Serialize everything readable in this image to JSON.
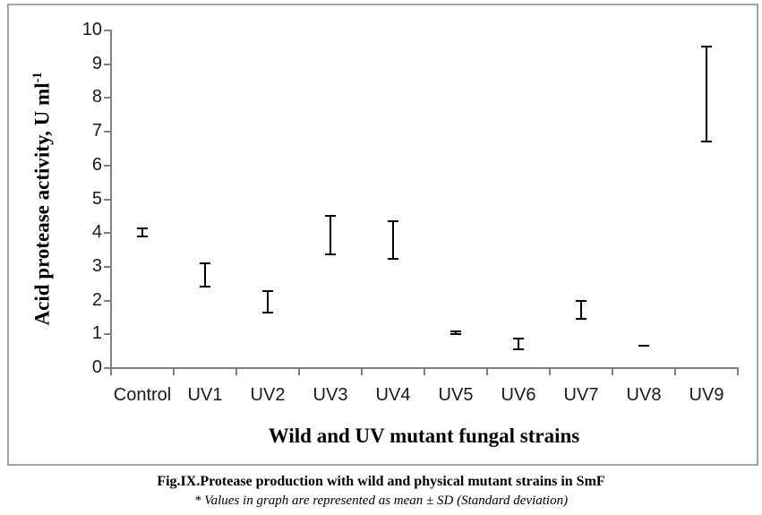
{
  "figure": {
    "caption_title": "Fig.IX.Protease production with wild and physical mutant strains in SmF",
    "caption_note": "* Values in graph are represented as mean ± SD (Standard deviation)"
  },
  "chart_data": {
    "type": "scatter",
    "subtype": "error-bars-only (mean ± SD, no markers)",
    "title": "",
    "xlabel": "Wild and UV mutant fungal strains",
    "ylabel": "Acid protease activity, U ml⁻¹",
    "ylabel_main": "Acid protease activity, U ml",
    "ylabel_superscript": "-1",
    "categories": [
      "Control",
      "UV1",
      "UV2",
      "UV3",
      "UV4",
      "UV5",
      "UV6",
      "UV7",
      "UV8",
      "UV9"
    ],
    "series": [
      {
        "name": "Acid protease activity (mean ± SD)",
        "means": [
          4.0,
          2.75,
          1.95,
          3.93,
          3.77,
          1.04,
          0.7,
          1.7,
          0.65,
          8.1
        ],
        "sd": [
          0.13,
          0.35,
          0.32,
          0.58,
          0.57,
          0.05,
          0.18,
          0.28,
          0.02,
          1.42
        ]
      }
    ],
    "ylim": [
      0,
      10
    ],
    "yticks": [
      0,
      1,
      2,
      3,
      4,
      5,
      6,
      7,
      8,
      9,
      10
    ],
    "grid": false,
    "legend": false,
    "colors": {
      "error_bar": "#000000",
      "axis": "#808080",
      "tick_text": "#1a1a1a",
      "border": "#a3a3a3"
    }
  }
}
